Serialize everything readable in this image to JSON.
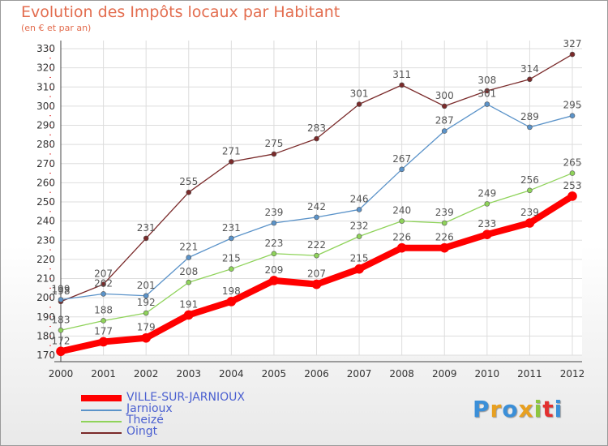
{
  "header": {
    "title": "Evolution des Impôts locaux par Habitant",
    "subtitle": "(en € et par an)"
  },
  "logo": {
    "text": "Proxiti"
  },
  "colors": {
    "VILLE-SUR-JARNIOUX": "#ff0000",
    "Jarnioux": "#5b93c9",
    "Theizé": "#8fd35a",
    "Oingt": "#7a2a2a",
    "logo": [
      "#3b8fd8",
      "#e8a020",
      "#3b8fd8",
      "#e8a020",
      "#8cc640",
      "#e23030",
      "#3b8fd8"
    ]
  },
  "chart_data": {
    "type": "line",
    "title": "Evolution des Impôts locaux par Habitant",
    "subtitle": "(en € et par an)",
    "xlabel": "",
    "ylabel": "",
    "x": [
      "2000",
      "2001",
      "2002",
      "2003",
      "2004",
      "2005",
      "2006",
      "2007",
      "2008",
      "2009",
      "2010",
      "2011",
      "2012"
    ],
    "yticks": [
      170,
      180,
      190,
      200,
      210,
      220,
      230,
      240,
      250,
      260,
      270,
      280,
      290,
      300,
      310,
      320,
      330
    ],
    "ylim": [
      170,
      330
    ],
    "grid": true,
    "legend": "bottom-left",
    "series": [
      {
        "name": "VILLE-SUR-JARNIOUX",
        "values": [
          172,
          177,
          179,
          191,
          198,
          209,
          207,
          215,
          226,
          226,
          233,
          239,
          253
        ]
      },
      {
        "name": "Jarnioux",
        "values": [
          199,
          202,
          201,
          221,
          231,
          239,
          242,
          246,
          267,
          287,
          301,
          289,
          295
        ]
      },
      {
        "name": "Theizé",
        "values": [
          183,
          188,
          192,
          208,
          215,
          223,
          222,
          232,
          240,
          239,
          249,
          256,
          265
        ]
      },
      {
        "name": "Oingt",
        "values": [
          198,
          207,
          231,
          255,
          271,
          275,
          283,
          301,
          311,
          300,
          308,
          314,
          327
        ]
      }
    ]
  }
}
